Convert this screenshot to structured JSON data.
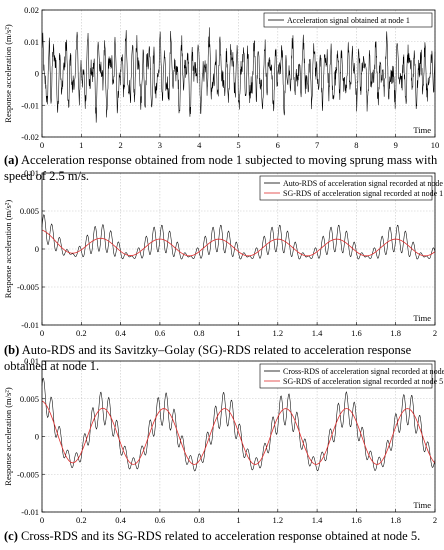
{
  "charts": [
    {
      "caption_tag": "(a)",
      "caption_text": "Acceleration response obtained from node 1 subjected to moving sprung mass with speed of 2.5 m/s.",
      "ylabel": "Response acceleration (m/s²)",
      "xlabel_inline": "Time",
      "xlim": [
        0,
        10
      ],
      "ylim": [
        -0.02,
        0.02
      ],
      "xticks": [
        "0",
        "1",
        "2",
        "3",
        "4",
        "5",
        "6",
        "7",
        "8",
        "9",
        "10"
      ],
      "yticks": [
        "0.02",
        "0.01",
        "0",
        "-0.01",
        "-0.02"
      ],
      "legend": [
        "Acceleration signal obtained at node 1"
      ]
    },
    {
      "caption_tag": "(b)",
      "caption_text": "Auto-RDS and its Savitzky–Golay (SG)-RDS related to acceleration response obtained at node 1.",
      "ylabel": "Response acceleration (m/s²)",
      "xlabel_inline": "Time",
      "xlim": [
        0,
        2
      ],
      "ylim": [
        -0.01,
        0.01
      ],
      "xticks": [
        "0",
        "0.2",
        "0.4",
        "0.6",
        "0.8",
        "1",
        "1.2",
        "1.4",
        "1.6",
        "1.8",
        "2"
      ],
      "yticks": [
        "0.01",
        "0.005",
        "0",
        "-0.005",
        "-0.01"
      ],
      "legend": [
        "Auto-RDS of acceleration signal recorded at node 1",
        "SG-RDS of acceleration signal recorded at node 1"
      ]
    },
    {
      "caption_tag": "(c)",
      "caption_text": "Cross-RDS and its SG-RDS related to acceleration response obtained at node 5.",
      "ylabel": "Response acceleration (m/s²)",
      "xlabel_inline": "Time",
      "xlim": [
        0,
        2
      ],
      "ylim": [
        -0.01,
        0.01
      ],
      "xticks": [
        "0",
        "0.2",
        "0.4",
        "0.6",
        "0.8",
        "1",
        "1.2",
        "1.4",
        "1.6",
        "1.8",
        "2"
      ],
      "yticks": [
        "0.01",
        "0.005",
        "0",
        "-0.005",
        "-0.01"
      ],
      "legend": [
        "Cross-RDS of acceleration signal recorded at node 5",
        "SG-RDS of acceleration signal recorded at node 5"
      ]
    }
  ],
  "chart_data": [
    {
      "type": "line",
      "x_range": [
        0,
        10
      ],
      "y_range": [
        -0.02,
        0.02
      ],
      "series": [
        {
          "name": "Acceleration signal obtained at node 1",
          "color": "#000000",
          "description_values": {
            "envelope_start": 0.015,
            "envelope_end": 0.01,
            "mean": 0
          }
        }
      ]
    },
    {
      "type": "line",
      "x_range": [
        0,
        2
      ],
      "y_range": [
        -0.01,
        0.01
      ],
      "series": [
        {
          "name": "Auto-RDS of acceleration signal recorded at node 1",
          "color": "#000000",
          "values": {
            "start": 0.003,
            "oscillation_amplitude": 0.0025,
            "slow_period": 0.3
          }
        },
        {
          "name": "SG-RDS of acceleration signal recorded at node 1",
          "color": "#e03030",
          "values": {
            "start": 0.0025,
            "amplitude": 0.0012,
            "period": 0.3
          }
        }
      ]
    },
    {
      "type": "line",
      "x_range": [
        0,
        2
      ],
      "y_range": [
        -0.01,
        0.01
      ],
      "series": [
        {
          "name": "Cross-RDS of acceleration signal recorded at node 5",
          "color": "#000000",
          "values": {
            "start": 0.007,
            "oscillation_amplitude": 0.006,
            "slow_period": 0.31
          }
        },
        {
          "name": "SG-RDS of acceleration signal recorded at node 5",
          "color": "#e03030",
          "values": {
            "start": 0.0045,
            "amplitude": 0.0037,
            "period": 0.31
          }
        }
      ]
    }
  ]
}
